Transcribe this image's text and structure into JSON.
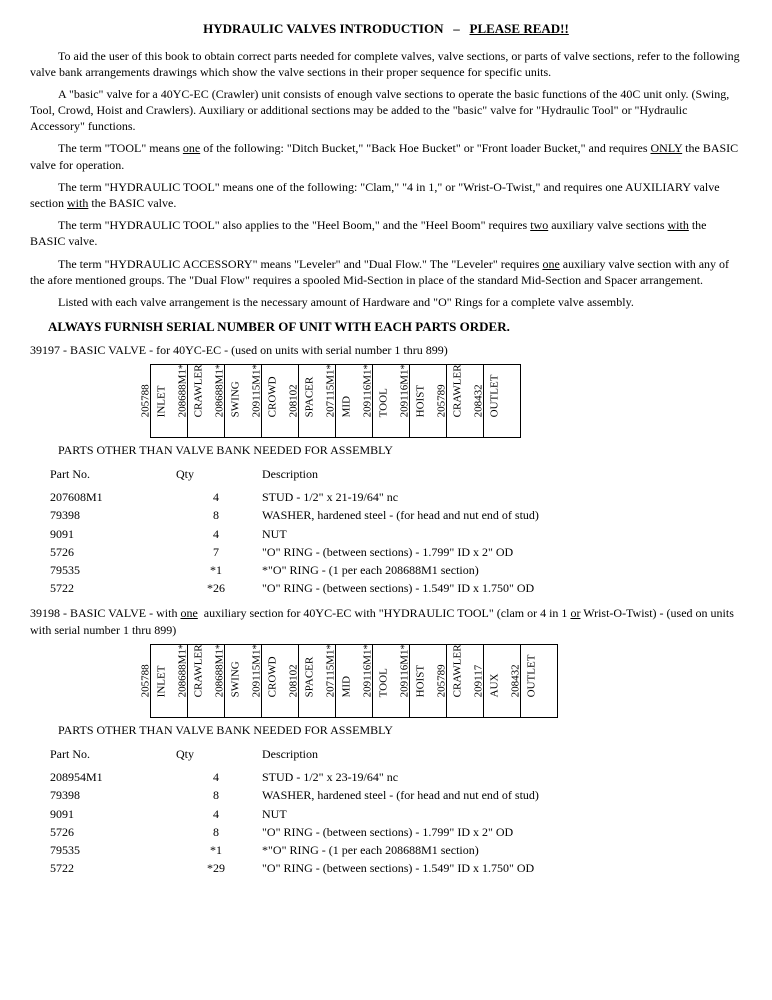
{
  "title": {
    "left": "HYDRAULIC VALVES INTRODUCTION",
    "sep": "–",
    "right": "PLEASE  READ!!"
  },
  "paras": [
    {
      "text": "To aid the user of this book to obtain correct parts needed for complete valves, valve sections, or parts of valve sections, refer to the following valve bank arrangements drawings which show the valve sections in their proper sequence for specific units."
    },
    {
      "text": "A \"basic\" valve for a 40YC-EC (Crawler) unit consists of enough valve sections to operate the basic functions of the 40C unit only.  (Swing, Tool, Crowd, Hoist and Crawlers).  Auxiliary or additional sections may be added to the \"basic\" valve for \"Hydraulic Tool\" or \"Hydraulic Accessory\" functions."
    },
    {
      "html": "The term \"TOOL\" means <span class=\"ul\">one</span> of the following:  \"Ditch Bucket,\" \"Back Hoe Bucket\" or \"Front loader Bucket,\" and requires <span class=\"ul\">ONLY</span> the BASIC valve for operation."
    },
    {
      "html": "The term \"HYDRAULIC TOOL\" means one of the following:  \"Clam,\" \"4 in 1,\" or \"Wrist-O-Twist,\" and requires one AUXILIARY valve section <span class=\"ul\">with</span> the BASIC valve."
    },
    {
      "html": "The term \"HYDRAULIC TOOL\" also applies to the \"Heel Boom,\" and the \"Heel Boom\" requires <span class=\"ul\">two</span> auxiliary valve sections <span class=\"ul\">with</span> the BASIC valve."
    },
    {
      "html": "The term \"HYDRAULIC ACCESSORY\" means \"Leveler\" and \"Dual Flow.\"  The \"Leveler\" requires <span class=\"ul\">one</span> auxiliary valve section with any of the afore mentioned groups.  The \"Dual Flow\" requires a spooled Mid-Section in place of the standard Mid-Section and Spacer arrangement."
    },
    {
      "text": "Listed with each valve arrangement is the necessary amount of Hardware and \"O\" Rings for a complete valve assembly."
    }
  ],
  "subhead": "ALWAYS  FURNISH  SERIAL  NUMBER  OF  UNIT  WITH  EACH  PARTS  ORDER.",
  "items": [
    {
      "header": "39197 - BASIC VALVE - for 40YC-EC - (used on units with serial number 1 thru 899)",
      "bank": [
        {
          "pn": "205788",
          "lbl": "INLET"
        },
        {
          "pn": "208688M1*",
          "lbl": "CRAWLER"
        },
        {
          "pn": "208688M1*",
          "lbl": "SWING"
        },
        {
          "pn": "209115M1*",
          "lbl": "CROWD"
        },
        {
          "pn": "208102",
          "lbl": "SPACER"
        },
        {
          "pn": "207115M1*",
          "lbl": "MID"
        },
        {
          "pn": "209116M1*",
          "lbl": "TOOL"
        },
        {
          "pn": "209116M1*",
          "lbl": "HOIST"
        },
        {
          "pn": "205789",
          "lbl": "CRAWLER"
        },
        {
          "pn": "208432",
          "lbl": "OUTLET"
        }
      ],
      "sectionLabel": "PARTS OTHER THAN VALVE BANK NEEDED FOR ASSEMBLY",
      "columns": [
        "Part No.",
        "Qty",
        "Description"
      ],
      "rows": [
        [
          "207608M1",
          "4",
          "STUD - 1/2\" x 21-19/64\" nc"
        ],
        [
          "79398",
          "8",
          "WASHER, hardened steel - (for head and nut end of stud)"
        ],
        [
          "9091",
          "4",
          "NUT"
        ],
        [
          "5726",
          "7",
          "\"O\" RING - (between sections) - 1.799\" ID x 2\" OD"
        ],
        [
          "79535",
          "*1",
          "*\"O\" RING - (1 per each 208688M1 section)"
        ],
        [
          "5722",
          "*26",
          "\"O\" RING - (between sections) - 1.549\" ID x 1.750\" OD"
        ]
      ]
    },
    {
      "headerHtml": "39198 - BASIC VALVE - with <span class=\"ul\">one</span>&nbsp; auxiliary section for 40YC-EC with \"HYDRAULIC TOOL\" (clam or 4 in 1 <span class=\"ul\">or</span> Wrist-O-Twist) - (used on units with serial number 1 thru 899)",
      "bank": [
        {
          "pn": "205788",
          "lbl": "INLET"
        },
        {
          "pn": "208688M1*",
          "lbl": "CRAWLER"
        },
        {
          "pn": "208688M1*",
          "lbl": "SWING"
        },
        {
          "pn": "209115M1*",
          "lbl": "CROWD"
        },
        {
          "pn": "208102",
          "lbl": "SPACER"
        },
        {
          "pn": "207115M1*",
          "lbl": "MID"
        },
        {
          "pn": "209116M1*",
          "lbl": "TOOL"
        },
        {
          "pn": "209116M1*",
          "lbl": "HOIST"
        },
        {
          "pn": "205789",
          "lbl": "CRAWLER"
        },
        {
          "pn": "209117",
          "lbl": "AUX"
        },
        {
          "pn": "208432",
          "lbl": "OUTLET"
        }
      ],
      "sectionLabel": "PARTS OTHER THAN VALVE BANK NEEDED FOR ASSEMBLY",
      "columns": [
        "Part No.",
        "Qty",
        "Description"
      ],
      "rows": [
        [
          "208954M1",
          "4",
          "STUD - 1/2\" x 23-19/64\" nc"
        ],
        [
          "79398",
          "8",
          "WASHER, hardened steel - (for head and nut end of stud)"
        ],
        [
          "9091",
          "4",
          "NUT"
        ],
        [
          "5726",
          "8",
          "\"O\" RING - (between sections) - 1.799\" ID x 2\" OD"
        ],
        [
          "79535",
          "*1",
          "*\"O\" RING - (1 per each 208688M1 section)"
        ],
        [
          "5722",
          "*29",
          "\"O\" RING - (between sections) - 1.549\" ID x 1.750\" OD"
        ]
      ]
    }
  ]
}
